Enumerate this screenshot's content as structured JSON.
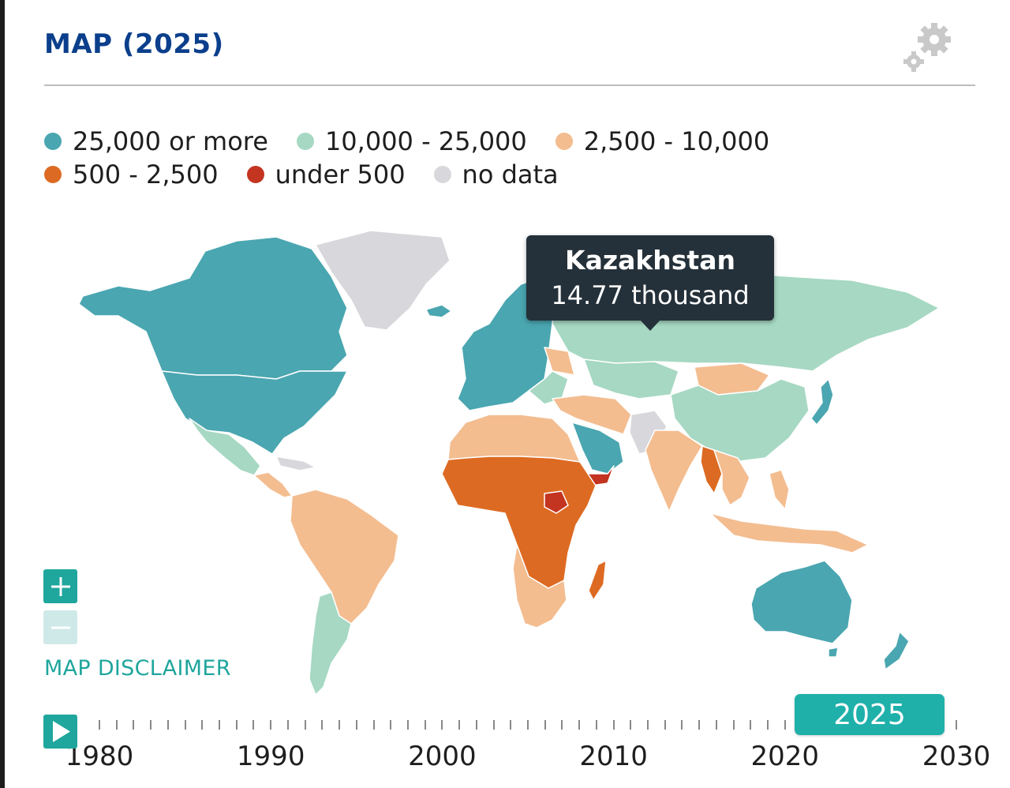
{
  "header": {
    "title": "MAP (2025)",
    "settings_icon": "gears-icon"
  },
  "legend": {
    "items": [
      {
        "label": "25,000 or more",
        "color": "#4aa6b0"
      },
      {
        "label": "10,000 - 25,000",
        "color": "#a6d8c3"
      },
      {
        "label": "2,500 - 10,000",
        "color": "#f3bd90"
      },
      {
        "label": "500 - 2,500",
        "color": "#dd6a22"
      },
      {
        "label": "under 500",
        "color": "#c33421"
      },
      {
        "label": "no data",
        "color": "#d8d8dc"
      }
    ]
  },
  "tooltip": {
    "country": "Kazakhstan",
    "value": "14.77 thousand"
  },
  "map": {
    "disclaimer": "MAP DISCLAIMER",
    "zoom_in_icon": "plus-icon",
    "zoom_out_icon": "minus-icon"
  },
  "timeline": {
    "play_icon": "play-icon",
    "year_labels": [
      "1980",
      "1990",
      "2000",
      "2010",
      "2020",
      "2030"
    ],
    "selected_year": "2025",
    "start_year": 1980,
    "end_year": 2030
  }
}
